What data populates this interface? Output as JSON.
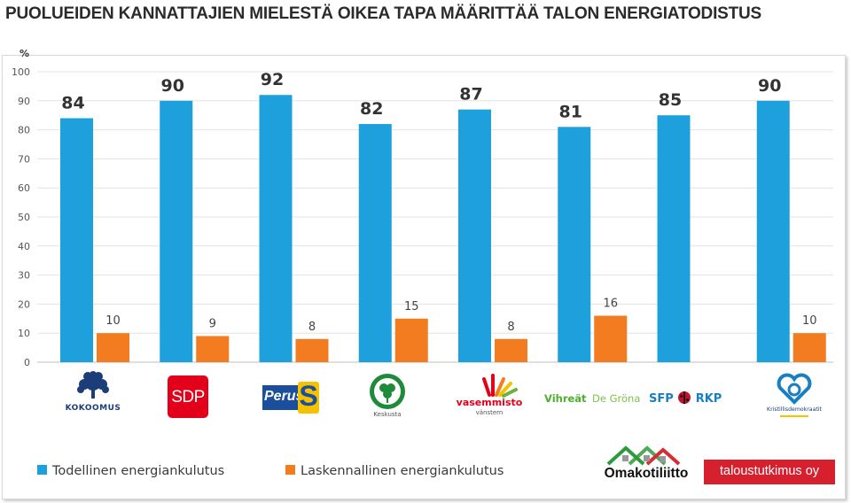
{
  "chart_data": {
    "type": "bar",
    "title": "PUOLUEIDEN KANNATTAJIEN MIELESTÄ OIKEA TAPA MÄÄRITTÄÄ TALON ENERGIATODISTUS",
    "ylabel": "%",
    "ylim": [
      0,
      100
    ],
    "yticks": [
      "0",
      "10",
      "20",
      "30",
      "40",
      "50",
      "60",
      "70",
      "80",
      "90",
      "100"
    ],
    "grid": true,
    "legend_position": "bottom-left",
    "categories": [
      "KOKOOMUS",
      "SDP",
      "Perus",
      "Keskusta",
      "vasemmisto",
      "Vihreät De Gröna",
      "SFP RKP",
      "Kristillisdemokraatit"
    ],
    "series": [
      {
        "name": "Todellinen energiankulutus",
        "color": "#1ea0dc",
        "values": [
          84,
          90,
          92,
          82,
          87,
          81,
          85,
          90
        ],
        "labels": [
          "84",
          "90",
          "92",
          "82",
          "87",
          "81",
          "85",
          "90"
        ]
      },
      {
        "name": "Laskennallinen energiankulutus",
        "color": "#f47c20",
        "values": [
          10,
          9,
          8,
          15,
          8,
          16,
          null,
          10
        ],
        "labels": [
          "10",
          "9",
          "8",
          "15",
          "8",
          "16",
          "",
          "10"
        ]
      }
    ]
  },
  "logos": {
    "kokoomus": "KOKOOMUS",
    "sdp": "SDP",
    "perus": "Perus",
    "perus_s": "S",
    "keskusta": "Keskusta",
    "vasemmisto": "vasemmisto",
    "vasemmisto_sub": "vänstern",
    "vihreat": "Vihreät",
    "degrona": "De Gröna",
    "sfp": "SFP",
    "rkp": "RKP",
    "kd": "Kristillisdemokraatit",
    "omakotiliitto": "Omakotiliitto",
    "taloustutkimus": "taloustutkimus oy"
  }
}
